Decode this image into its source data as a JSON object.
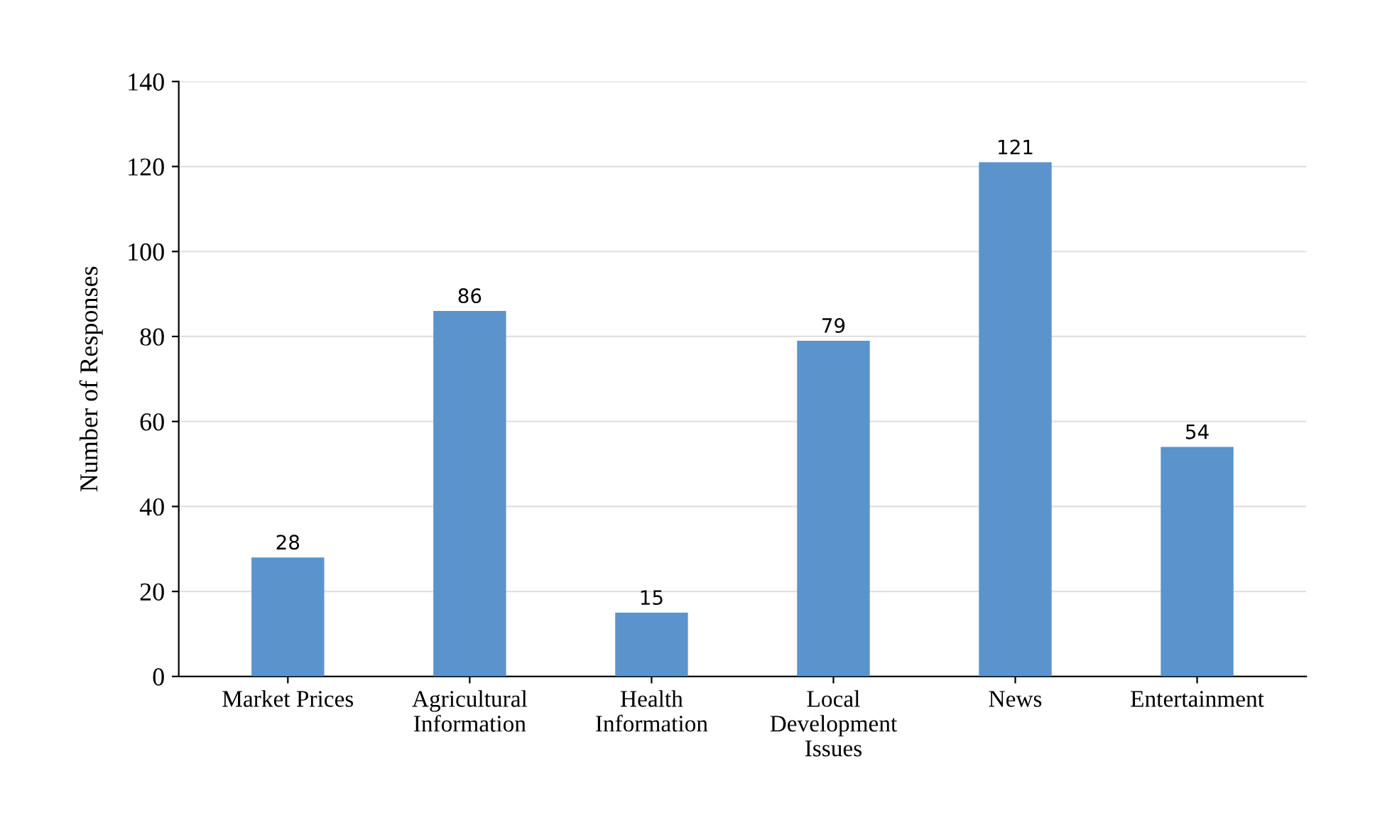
{
  "chart_data": {
    "type": "bar",
    "ylabel": "Number of Responses",
    "categories": [
      "Market Prices",
      "Agricultural\nInformation",
      "Health\nInformation",
      "Local\nDevelopment\nIssues",
      "News",
      "Entertainment"
    ],
    "values": [
      28,
      86,
      15,
      79,
      121,
      54
    ],
    "color": "#5b93cd",
    "ylim": [
      0,
      140
    ],
    "yticks": [
      0,
      20,
      40,
      60,
      80,
      100,
      120,
      140
    ],
    "grid": "y",
    "data_labels": true
  }
}
